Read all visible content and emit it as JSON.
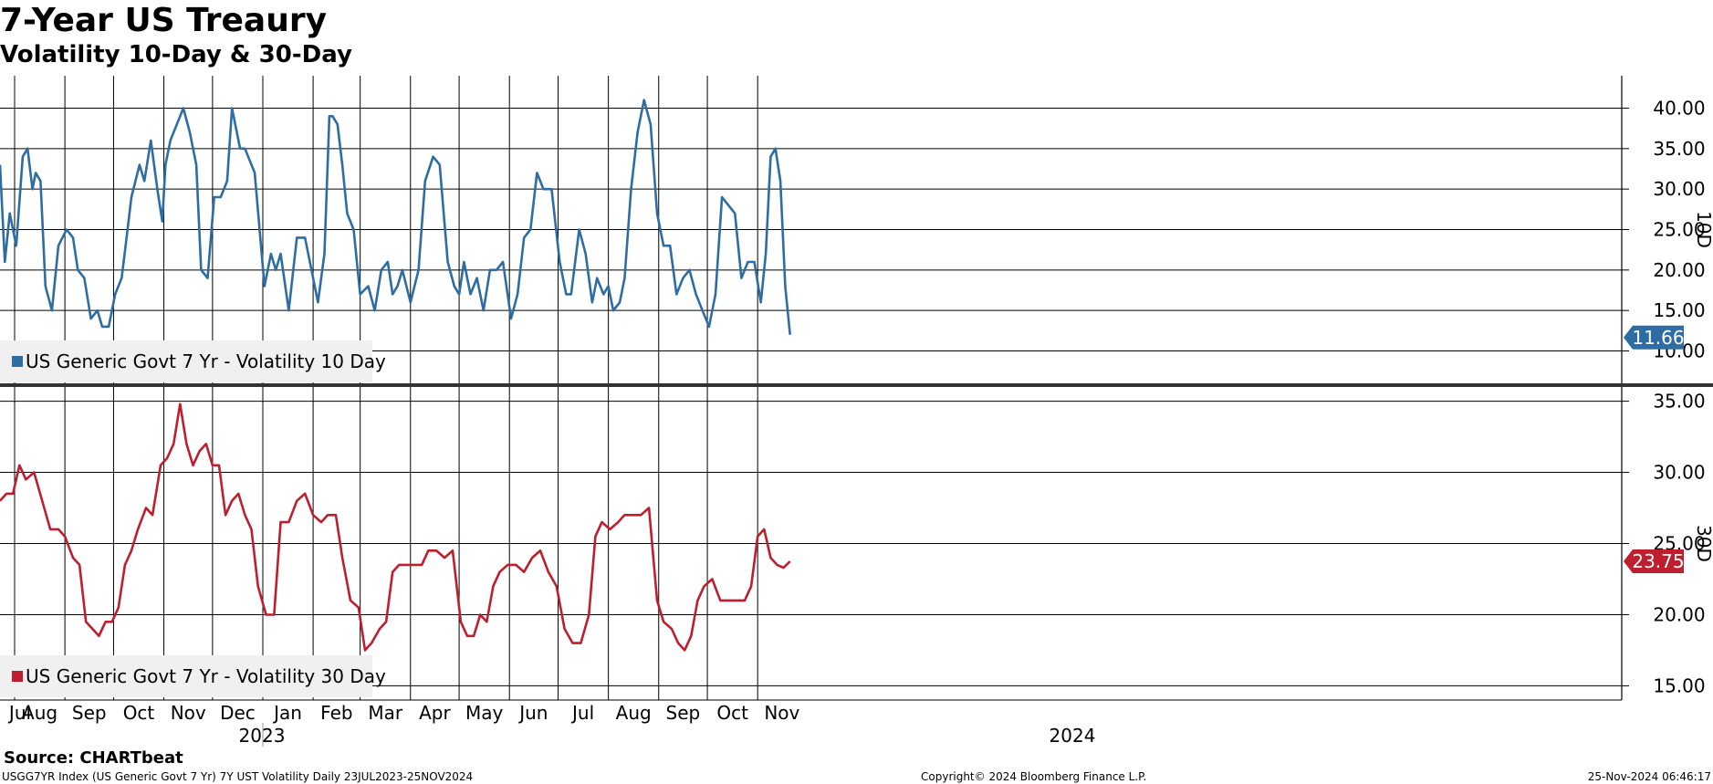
{
  "header": {
    "title": "7-Year US Treaury",
    "subtitle": "Volatility 10-Day & 30-Day"
  },
  "footer": {
    "source": "Source: CHARTbeat",
    "info": "USGG7YR Index (US Generic Govt 7 Yr) 7Y UST Volatility  Daily 23JUL2023-25NOV2024",
    "copyright": "Copyright© 2024 Bloomberg Finance L.P.",
    "timestamp": "25-Nov-2024 06:46:17"
  },
  "colors": {
    "vol10": "#2e6da4",
    "vol30": "#be1e2d",
    "grid": "#000000"
  },
  "chart_data": [
    {
      "type": "line",
      "panel": "top",
      "axis_title": "10D",
      "ylim": [
        6,
        44
      ],
      "yticks": [
        10,
        15,
        20,
        25,
        30,
        35,
        40
      ],
      "ytick_labels": [
        "10.00",
        "15.00",
        "20.00",
        "25.00",
        "30.00",
        "35.00",
        "40.00"
      ],
      "grid": true,
      "legend_position": "bottom-left",
      "last_value": 11.66,
      "last_value_label": "11.66",
      "series": [
        {
          "name": "US Generic Govt 7 Yr - Volatility 10 Day",
          "color": "#2e6da4",
          "x": [
            "2023-07-23",
            "2023-07-26",
            "2023-07-29",
            "2023-08-02",
            "2023-08-06",
            "2023-08-09",
            "2023-08-12",
            "2023-08-14",
            "2023-08-17",
            "2023-08-20",
            "2023-08-24",
            "2023-08-28",
            "2023-09-02",
            "2023-09-06",
            "2023-09-09",
            "2023-09-13",
            "2023-09-17",
            "2023-09-21",
            "2023-09-24",
            "2023-09-28",
            "2023-10-02",
            "2023-10-06",
            "2023-10-09",
            "2023-10-12",
            "2023-10-17",
            "2023-10-20",
            "2023-10-24",
            "2023-10-28",
            "2023-10-31",
            "2023-11-02",
            "2023-11-05",
            "2023-11-09",
            "2023-11-13",
            "2023-11-17",
            "2023-11-21",
            "2023-11-24",
            "2023-11-28",
            "2023-12-02",
            "2023-12-06",
            "2023-12-10",
            "2023-12-13",
            "2023-12-18",
            "2023-12-21",
            "2023-12-27",
            "2024-01-02",
            "2024-01-06",
            "2024-01-09",
            "2024-01-12",
            "2024-01-17",
            "2024-01-22",
            "2024-01-27",
            "2024-01-31",
            "2024-02-04",
            "2024-02-08",
            "2024-02-11",
            "2024-02-13",
            "2024-02-16",
            "2024-02-19",
            "2024-02-22",
            "2024-02-26",
            "2024-03-01",
            "2024-03-06",
            "2024-03-10",
            "2024-03-14",
            "2024-03-18",
            "2024-03-21",
            "2024-03-24",
            "2024-03-27",
            "2024-04-01",
            "2024-04-06",
            "2024-04-10",
            "2024-04-15",
            "2024-04-19",
            "2024-04-24",
            "2024-04-28",
            "2024-05-01",
            "2024-05-04",
            "2024-05-08",
            "2024-05-12",
            "2024-05-16",
            "2024-05-20",
            "2024-05-24",
            "2024-05-28",
            "2024-06-02",
            "2024-06-06",
            "2024-06-10",
            "2024-06-14",
            "2024-06-18",
            "2024-06-22",
            "2024-06-27",
            "2024-07-02",
            "2024-07-06",
            "2024-07-09",
            "2024-07-14",
            "2024-07-18",
            "2024-07-22",
            "2024-07-25",
            "2024-07-29",
            "2024-08-01",
            "2024-08-04",
            "2024-08-08",
            "2024-08-11",
            "2024-08-15",
            "2024-08-19",
            "2024-08-23",
            "2024-08-27",
            "2024-08-31",
            "2024-09-04",
            "2024-09-08",
            "2024-09-12",
            "2024-09-16",
            "2024-09-20",
            "2024-09-24",
            "2024-09-28",
            "2024-10-02",
            "2024-10-06",
            "2024-10-10",
            "2024-10-14",
            "2024-10-18",
            "2024-10-22",
            "2024-10-26",
            "2024-10-30",
            "2024-11-03",
            "2024-11-06",
            "2024-11-09",
            "2024-11-12",
            "2024-11-15",
            "2024-11-18",
            "2024-11-21"
          ],
          "values": [
            33,
            21,
            27,
            23,
            34,
            35,
            30,
            32,
            31,
            18,
            15,
            23,
            25,
            24,
            20,
            19,
            14,
            15,
            13,
            13,
            17,
            19,
            24,
            29,
            33,
            31,
            36,
            30,
            26,
            33,
            36,
            38,
            40,
            37,
            33,
            20,
            19,
            29,
            29,
            31,
            40,
            35,
            35,
            32,
            18,
            22,
            20,
            22,
            15,
            24,
            24,
            20,
            16,
            22,
            39,
            39,
            38,
            33,
            27,
            25,
            17,
            18,
            15,
            20,
            21,
            17,
            18,
            20,
            16,
            20,
            31,
            34,
            33,
            21,
            18,
            17,
            21,
            17,
            19,
            15,
            20,
            20,
            21,
            14,
            17,
            24,
            25,
            32,
            30,
            30,
            21,
            17,
            17,
            25,
            22,
            16,
            19,
            17,
            18,
            15,
            16,
            19,
            30,
            37,
            41,
            38,
            27,
            23,
            23,
            17,
            19,
            20,
            17,
            15,
            13,
            17,
            29,
            28,
            27,
            19,
            21,
            21,
            16,
            22,
            34,
            35,
            31,
            18,
            12
          ]
        }
      ]
    },
    {
      "type": "line",
      "panel": "bottom",
      "axis_title": "30D",
      "ylim": [
        14,
        36
      ],
      "yticks": [
        15,
        20,
        25,
        30,
        35
      ],
      "ytick_labels": [
        "15.00",
        "20.00",
        "25.00",
        "30.00",
        "35.00"
      ],
      "grid": true,
      "legend_position": "bottom-left",
      "last_value": 23.75,
      "last_value_label": "23.75",
      "x_tick_labels": [
        "Jul",
        "Aug",
        "Sep",
        "Oct",
        "Nov",
        "Dec",
        "Jan",
        "Feb",
        "Mar",
        "Apr",
        "May",
        "Jun",
        "Jul",
        "Aug",
        "Sep",
        "Oct",
        "Nov"
      ],
      "year_labels": [
        "2023",
        "2024"
      ],
      "series": [
        {
          "name": "US Generic Govt 7 Yr - Volatility 30 Day",
          "color": "#be1e2d",
          "x": [
            "2023-07-23",
            "2023-07-27",
            "2023-07-31",
            "2023-08-04",
            "2023-08-08",
            "2023-08-13",
            "2023-08-18",
            "2023-08-23",
            "2023-08-28",
            "2023-09-01",
            "2023-09-06",
            "2023-09-10",
            "2023-09-14",
            "2023-09-18",
            "2023-09-22",
            "2023-09-26",
            "2023-09-30",
            "2023-10-04",
            "2023-10-08",
            "2023-10-12",
            "2023-10-16",
            "2023-10-21",
            "2023-10-25",
            "2023-10-30",
            "2023-11-03",
            "2023-11-07",
            "2023-11-11",
            "2023-11-15",
            "2023-11-19",
            "2023-11-23",
            "2023-11-27",
            "2023-12-01",
            "2023-12-05",
            "2023-12-09",
            "2023-12-13",
            "2023-12-17",
            "2023-12-21",
            "2023-12-25",
            "2023-12-29",
            "2024-01-03",
            "2024-01-08",
            "2024-01-12",
            "2024-01-17",
            "2024-01-22",
            "2024-01-27",
            "2024-02-01",
            "2024-02-06",
            "2024-02-10",
            "2024-02-15",
            "2024-02-19",
            "2024-02-24",
            "2024-02-29",
            "2024-03-04",
            "2024-03-08",
            "2024-03-13",
            "2024-03-17",
            "2024-03-21",
            "2024-03-25",
            "2024-03-29",
            "2024-04-03",
            "2024-04-08",
            "2024-04-12",
            "2024-04-17",
            "2024-04-22",
            "2024-04-27",
            "2024-05-02",
            "2024-05-06",
            "2024-05-10",
            "2024-05-14",
            "2024-05-18",
            "2024-05-22",
            "2024-05-26",
            "2024-05-31",
            "2024-06-05",
            "2024-06-10",
            "2024-06-15",
            "2024-06-20",
            "2024-06-25",
            "2024-06-30",
            "2024-07-05",
            "2024-07-10",
            "2024-07-15",
            "2024-07-20",
            "2024-07-24",
            "2024-07-28",
            "2024-08-02",
            "2024-08-07",
            "2024-08-11",
            "2024-08-16",
            "2024-08-21",
            "2024-08-26",
            "2024-08-31",
            "2024-09-04",
            "2024-09-09",
            "2024-09-13",
            "2024-09-17",
            "2024-09-21",
            "2024-09-25",
            "2024-09-29",
            "2024-10-04",
            "2024-10-09",
            "2024-10-14",
            "2024-10-19",
            "2024-10-24",
            "2024-10-28",
            "2024-11-01",
            "2024-11-05",
            "2024-11-09",
            "2024-11-13",
            "2024-11-17",
            "2024-11-21"
          ],
          "values": [
            28,
            28.5,
            28.5,
            30.5,
            29.5,
            30,
            28,
            26,
            26,
            25.5,
            24,
            23.5,
            19.5,
            19,
            18.5,
            19.5,
            19.5,
            20.5,
            23.5,
            24.5,
            26,
            27.5,
            27,
            30.5,
            31,
            32,
            34.8,
            32,
            30.5,
            31.5,
            32,
            30.5,
            30.5,
            27,
            28,
            28.5,
            27,
            26,
            22,
            20,
            20,
            26.5,
            26.5,
            28,
            28.5,
            27,
            26.5,
            27,
            27,
            24,
            21,
            20.5,
            17.5,
            18,
            19,
            19.5,
            23,
            23.5,
            23.5,
            23.5,
            23.5,
            24.5,
            24.5,
            24,
            24.5,
            19.5,
            18.5,
            18.5,
            20,
            19.5,
            22,
            23,
            23.5,
            23.5,
            23,
            24,
            24.5,
            23,
            22,
            19,
            18,
            18,
            20,
            25.5,
            26.5,
            26,
            26.5,
            27,
            27,
            27,
            27.5,
            21,
            19.5,
            19,
            18,
            17.5,
            18.5,
            21,
            22,
            22.5,
            21,
            21,
            21,
            21,
            22,
            25.5,
            26,
            24,
            23.5,
            23.3,
            23.75
          ]
        }
      ]
    }
  ]
}
